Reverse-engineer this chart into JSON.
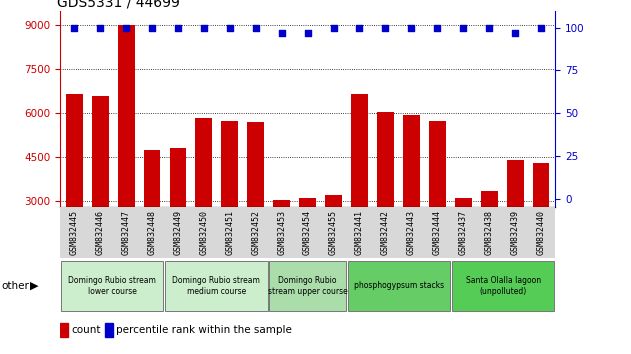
{
  "title": "GDS5331 / 44699",
  "samples": [
    "GSM832445",
    "GSM832446",
    "GSM832447",
    "GSM832448",
    "GSM832449",
    "GSM832450",
    "GSM832451",
    "GSM832452",
    "GSM832453",
    "GSM832454",
    "GSM832455",
    "GSM832441",
    "GSM832442",
    "GSM832443",
    "GSM832444",
    "GSM832437",
    "GSM832438",
    "GSM832439",
    "GSM832440"
  ],
  "counts": [
    6650,
    6600,
    9000,
    4750,
    4800,
    5850,
    5750,
    5700,
    3050,
    3100,
    3200,
    6650,
    6050,
    5950,
    5750,
    3100,
    3350,
    4400,
    4300
  ],
  "percentiles": [
    100,
    100,
    100,
    100,
    100,
    100,
    100,
    100,
    97,
    97,
    100,
    100,
    100,
    100,
    100,
    100,
    100,
    97,
    100
  ],
  "bar_color": "#cc0000",
  "dot_color": "#0000cc",
  "ylim_left": [
    2800,
    9500
  ],
  "ylim_right": [
    -5,
    110
  ],
  "yticks_left": [
    3000,
    4500,
    6000,
    7500,
    9000
  ],
  "yticks_right": [
    0,
    25,
    50,
    75,
    100
  ],
  "groups_info": [
    {
      "label": "Domingo Rubio stream\nlower course",
      "start": 0,
      "end": 4,
      "color": "#cceecc"
    },
    {
      "label": "Domingo Rubio stream\nmedium course",
      "start": 4,
      "end": 8,
      "color": "#cceecc"
    },
    {
      "label": "Domingo Rubio\nstream upper course",
      "start": 8,
      "end": 11,
      "color": "#aaddaa"
    },
    {
      "label": "phosphogypsum stacks",
      "start": 11,
      "end": 15,
      "color": "#66cc66"
    },
    {
      "label": "Santa Olalla lagoon\n(unpolluted)",
      "start": 15,
      "end": 19,
      "color": "#55cc55"
    }
  ],
  "legend_count_color": "#cc0000",
  "legend_pct_color": "#0000cc"
}
